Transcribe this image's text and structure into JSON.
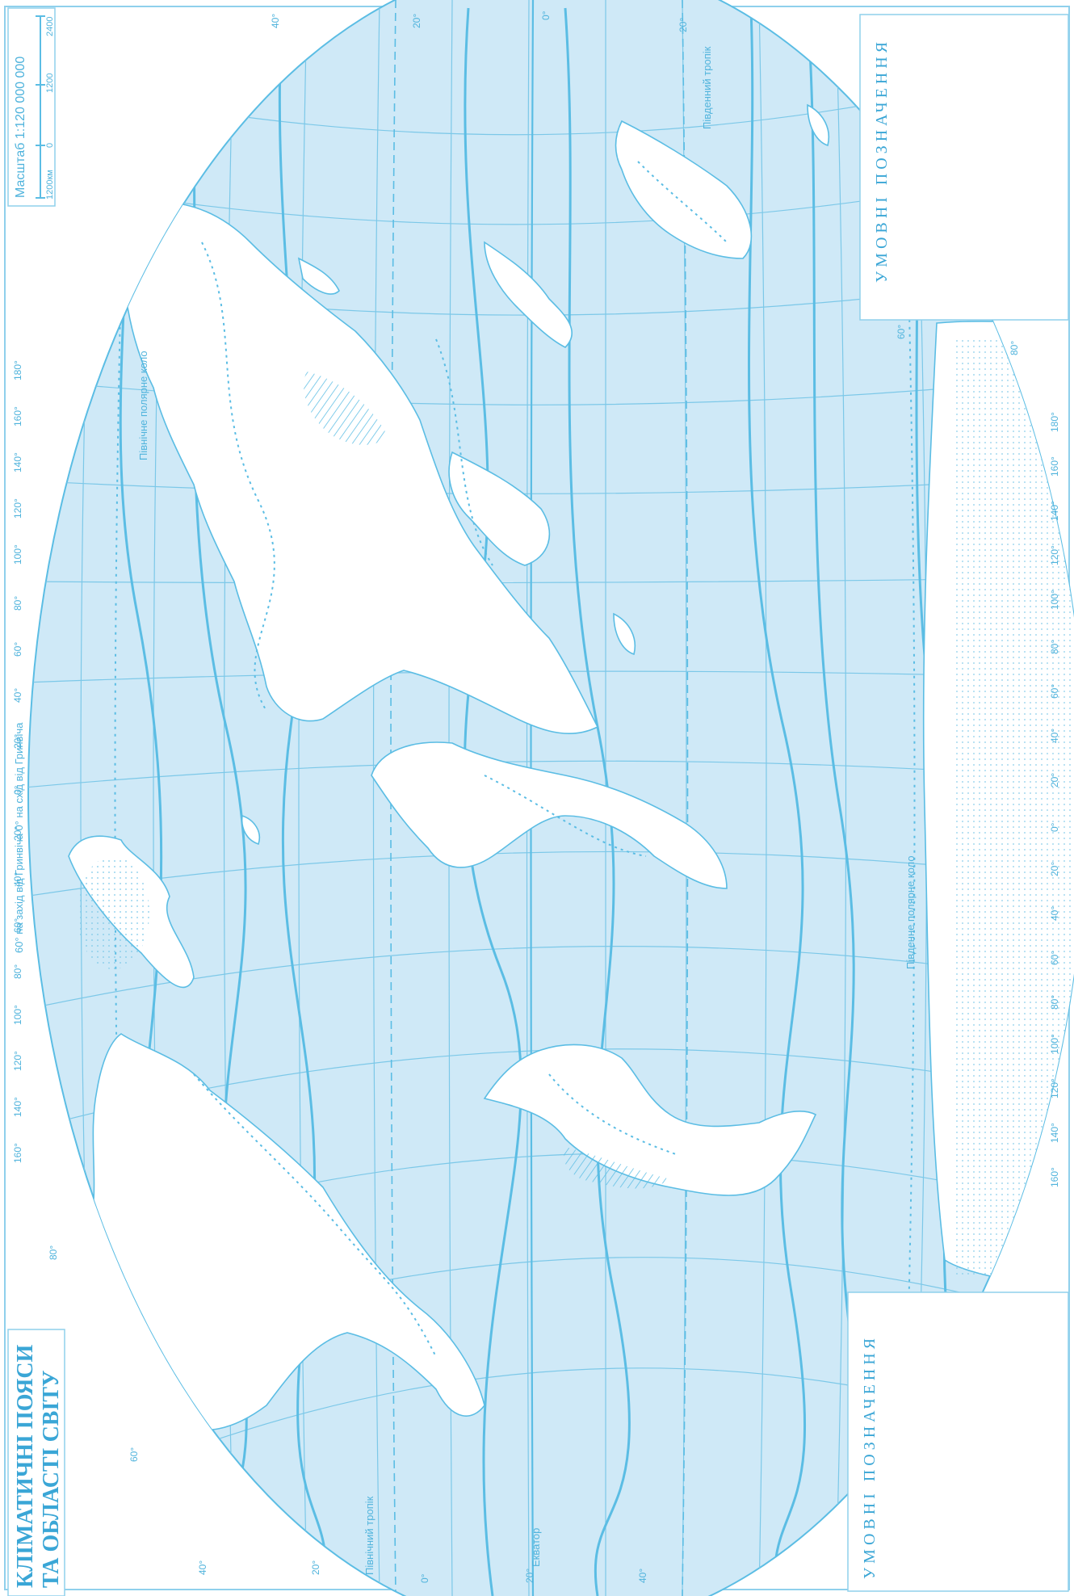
{
  "map": {
    "title_line1": "КЛІМАТИЧНІ ПОЯСИ",
    "title_line2": "ТА ОБЛАСТІ СВІТУ",
    "scale_label": "Масштаб 1:120 000 000",
    "scale_ticks": [
      "1200км",
      "0",
      "1200",
      "2400"
    ],
    "longitude_caption": "60° на захід від Гринвіча 0° на схід від Гринвіча",
    "legend_top_title": "УМОВНІ ПОЗНАЧЕННЯ",
    "legend_bottom_title": "УМОВНІ ПОЗНАЧЕННЯ",
    "parallel_labels": {
      "arctic_circle": "Північне полярне коло",
      "antarctic_circle": "Південне полярне коло",
      "tropic_north": "Північний тропік",
      "tropic_south": "Південний тропік",
      "equator": "Екватор"
    },
    "lon_labels_top": [
      "160°",
      "140°",
      "120°",
      "100°",
      "80°",
      "60°",
      "40°",
      "20°",
      "0°",
      "20°",
      "40°",
      "60°",
      "80°",
      "100°",
      "120°",
      "140°",
      "160°",
      "180°"
    ],
    "lon_labels_bottom": [
      "160°",
      "140°",
      "120°",
      "100°",
      "80°",
      "60°",
      "40°",
      "20°",
      "0°",
      "20°",
      "40°",
      "60°",
      "80°",
      "100°",
      "120°",
      "140°",
      "160°",
      "180°"
    ],
    "lat_labels_left": [
      "60°",
      "80°",
      "40°",
      "20°",
      "0°",
      "20°",
      "40°"
    ],
    "lat_labels_right": [
      "40°",
      "20°",
      "0°",
      "20°",
      "60°",
      "80°"
    ],
    "colors": {
      "ocean": "#cfe9f7",
      "land": "#ffffff",
      "line": "#5bbde4",
      "text": "#4fb3dc"
    }
  }
}
